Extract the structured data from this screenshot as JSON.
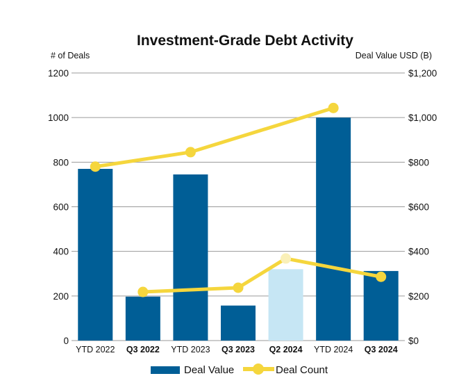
{
  "chart_data": {
    "type": "bar+line",
    "title": "Investment-Grade Debt Activity",
    "left_axis_label": "# of Deals",
    "right_axis_label": "Deal Value USD (B)",
    "categories": [
      "YTD 2022",
      "Q3 2022",
      "YTD 2023",
      "Q3 2023",
      "Q2 2024",
      "YTD 2024",
      "Q3 2024"
    ],
    "bold_categories": [
      "Q3 2022",
      "Q3 2023",
      "Q2 2024",
      "Q3 2024"
    ],
    "highlighted_category": "Q2 2024",
    "left_ticks": [
      "0",
      "200",
      "400",
      "600",
      "800",
      "1000",
      "1200"
    ],
    "right_ticks": [
      "$0",
      "$200",
      "$400",
      "$600",
      "$800",
      "$1,000",
      "$1,200"
    ],
    "ylim_left": [
      0,
      1200
    ],
    "ylim_right": [
      0,
      1200
    ],
    "gridlines": true,
    "legend_position": "bottom",
    "series": [
      {
        "name": "Deal Value",
        "kind": "bar",
        "axis": "right",
        "color": "#005e96",
        "highlight_color": "#c6e6f4",
        "values": [
          770,
          197,
          745,
          157,
          320,
          1000,
          312
        ]
      },
      {
        "name": "Deal Count",
        "kind": "line",
        "axis": "left",
        "color": "#f5d63d",
        "values": [
          780,
          218,
          845,
          237,
          368,
          1043,
          286
        ],
        "segments": [
          [
            0,
            2,
            5
          ],
          [
            1,
            3,
            4,
            6
          ]
        ]
      }
    ]
  }
}
